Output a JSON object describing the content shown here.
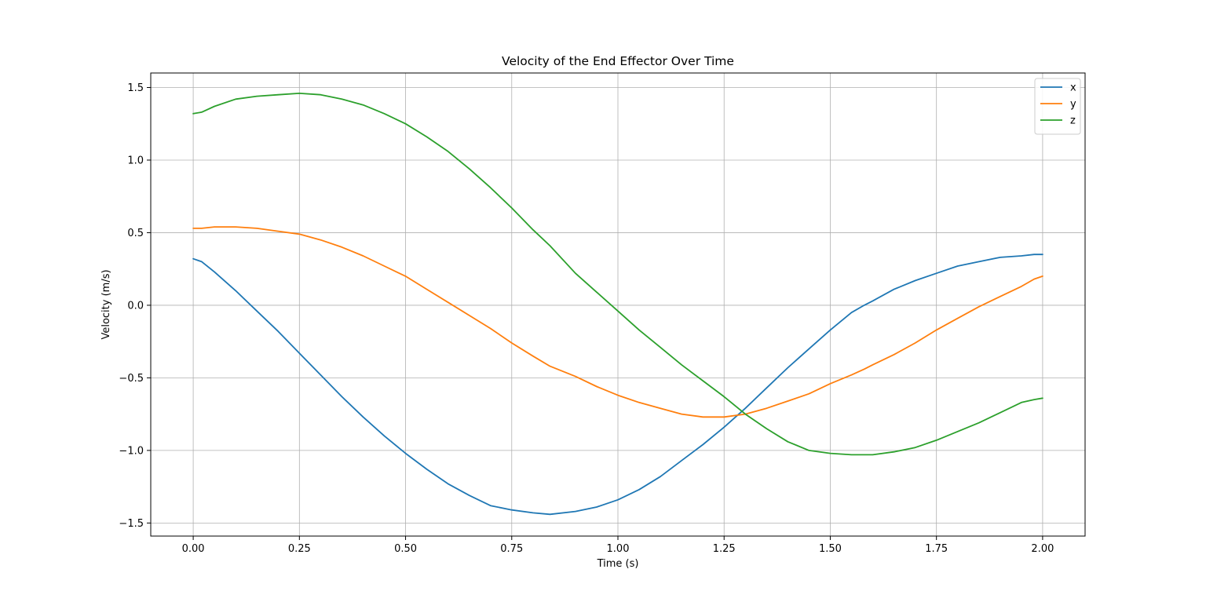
{
  "chart_data": {
    "type": "line",
    "title": "Velocity of the End Effector Over Time",
    "xlabel": "Time (s)",
    "ylabel": "Velocity (m/s)",
    "xlim": [
      -0.1,
      2.1
    ],
    "ylim": [
      -1.59,
      1.6
    ],
    "x_ticks": [
      0.0,
      0.25,
      0.5,
      0.75,
      1.0,
      1.25,
      1.5,
      1.75,
      2.0
    ],
    "x_tick_labels": [
      "0.00",
      "0.25",
      "0.50",
      "0.75",
      "1.00",
      "1.25",
      "1.50",
      "1.75",
      "2.00"
    ],
    "y_ticks": [
      -1.5,
      -1.0,
      -0.5,
      0.0,
      0.5,
      1.0,
      1.5
    ],
    "y_tick_labels": [
      "−1.5",
      "−1.0",
      "−0.5",
      "0.0",
      "0.5",
      "1.0",
      "1.5"
    ],
    "grid": true,
    "legend_position": "top-right",
    "x": [
      0.0,
      0.02,
      0.05,
      0.1,
      0.15,
      0.2,
      0.25,
      0.3,
      0.35,
      0.4,
      0.45,
      0.5,
      0.55,
      0.6,
      0.65,
      0.7,
      0.75,
      0.8,
      0.84,
      0.9,
      0.95,
      1.0,
      1.05,
      1.1,
      1.15,
      1.2,
      1.25,
      1.3,
      1.35,
      1.4,
      1.45,
      1.5,
      1.55,
      1.58,
      1.6,
      1.65,
      1.7,
      1.75,
      1.8,
      1.85,
      1.9,
      1.95,
      1.98,
      2.0
    ],
    "series": [
      {
        "name": "x",
        "color": "#1f77b4",
        "values": [
          0.32,
          0.3,
          0.23,
          0.1,
          -0.04,
          -0.18,
          -0.33,
          -0.48,
          -0.63,
          -0.77,
          -0.9,
          -1.02,
          -1.13,
          -1.23,
          -1.31,
          -1.38,
          -1.41,
          -1.43,
          -1.44,
          -1.42,
          -1.39,
          -1.34,
          -1.27,
          -1.18,
          -1.07,
          -0.96,
          -0.84,
          -0.71,
          -0.57,
          -0.43,
          -0.3,
          -0.17,
          -0.05,
          0.0,
          0.03,
          0.11,
          0.17,
          0.22,
          0.27,
          0.3,
          0.33,
          0.34,
          0.35,
          0.35
        ]
      },
      {
        "name": "y",
        "color": "#ff7f0e",
        "values": [
          0.53,
          0.53,
          0.54,
          0.54,
          0.53,
          0.51,
          0.49,
          0.45,
          0.4,
          0.34,
          0.27,
          0.2,
          0.11,
          0.02,
          -0.07,
          -0.16,
          -0.26,
          -0.35,
          -0.42,
          -0.49,
          -0.56,
          -0.62,
          -0.67,
          -0.71,
          -0.75,
          -0.77,
          -0.77,
          -0.75,
          -0.71,
          -0.66,
          -0.61,
          -0.54,
          -0.48,
          -0.44,
          -0.41,
          -0.34,
          -0.26,
          -0.17,
          -0.09,
          -0.01,
          0.06,
          0.13,
          0.18,
          0.2
        ]
      },
      {
        "name": "z",
        "color": "#2ca02c",
        "values": [
          1.32,
          1.33,
          1.37,
          1.42,
          1.44,
          1.45,
          1.46,
          1.45,
          1.42,
          1.38,
          1.32,
          1.25,
          1.16,
          1.06,
          0.94,
          0.81,
          0.67,
          0.52,
          0.41,
          0.22,
          0.09,
          -0.04,
          -0.17,
          -0.29,
          -0.41,
          -0.52,
          -0.63,
          -0.75,
          -0.85,
          -0.94,
          -1.0,
          -1.02,
          -1.03,
          -1.03,
          -1.03,
          -1.01,
          -0.98,
          -0.93,
          -0.87,
          -0.81,
          -0.74,
          -0.67,
          -0.65,
          -0.64
        ]
      }
    ]
  }
}
